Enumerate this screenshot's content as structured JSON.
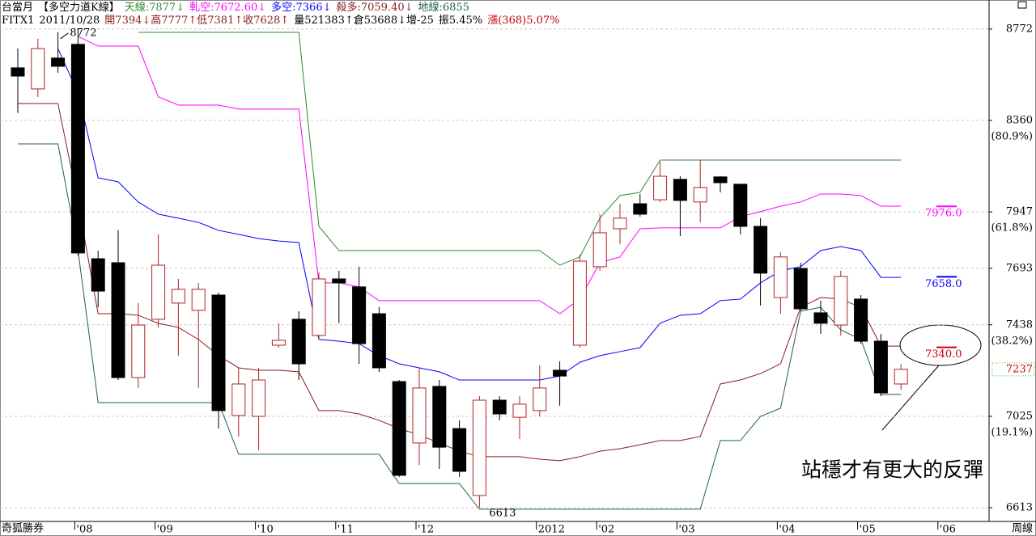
{
  "chart_data": {
    "type": "candlestick",
    "header": [
      [
        {
          "text": "台當月",
          "color": "#000000"
        },
        {
          "text": "【多空力道K線】",
          "color": "#000000"
        },
        {
          "text": "天線:7877↓",
          "color": "#2e8b2e"
        },
        {
          "text": "軋空:7672.60↓",
          "color": "#ff00ff"
        },
        {
          "text": "多空:7366↓",
          "color": "#0000ff"
        },
        {
          "text": "殺多:7059.40↓",
          "color": "#8b1a1a"
        },
        {
          "text": "地線:6855",
          "color": "#1f5f4f"
        }
      ],
      [
        {
          "text": "FITX1",
          "color": "#000000"
        },
        {
          "text": "2011/10/28",
          "color": "#000000"
        },
        {
          "text": "開7394↓高7777↑低7381↑收7628↑",
          "color": "#8b1a1a"
        },
        {
          "text": "量521383↑倉53688↓增-25",
          "color": "#000000"
        },
        {
          "text": "振5.45%",
          "color": "#000000"
        },
        {
          "text": "漲(368)5.07%",
          "color": "#c00000"
        }
      ]
    ],
    "categories": [
      null,
      null,
      null,
      "'08",
      null,
      null,
      null,
      "'09",
      null,
      null,
      null,
      null,
      "'10",
      null,
      null,
      null,
      "'11",
      null,
      null,
      null,
      "'12",
      null,
      null,
      null,
      null,
      null,
      "2012",
      null,
      null,
      "'02",
      null,
      null,
      null,
      "'03",
      null,
      null,
      null,
      null,
      "'04",
      null,
      null,
      null,
      "'05",
      null,
      null,
      null,
      "'06",
      null
    ],
    "open": [
      8597,
      8502,
      8641,
      8703,
      7736,
      7718,
      7200,
      7463,
      7536,
      7503,
      7572,
      7029,
      7025,
      7346,
      7463,
      7390,
      7645,
      7609,
      7488,
      7182,
      6905,
      7160,
      6970,
      6668,
      7098,
      7021,
      7051,
      7233,
      7346,
      7700,
      7871,
      7984,
      8002,
      8094,
      7992,
      8105,
      8072,
      7882,
      7561,
      7692,
      7492,
      7437,
      7554,
      7364,
      7171,
      null,
      null,
      null
    ],
    "high": [
      8684,
      8728,
      8757,
      8772,
      7773,
      7864,
      7536,
      7846,
      7645,
      7627,
      7583,
      7244,
      7244,
      7445,
      7499,
      7674,
      7682,
      7700,
      7518,
      7189,
      7244,
      7189,
      7007,
      7116,
      7116,
      7116,
      7255,
      7273,
      7754,
      7937,
      7984,
      8028,
      8174,
      8108,
      8181,
      8108,
      8072,
      7919,
      7765,
      7718,
      7547,
      7682,
      7572,
      7397,
      7262,
      null,
      null,
      null
    ],
    "low": [
      8393,
      8466,
      8575,
      7750,
      7517,
      7189,
      7153,
      7426,
      7299,
      7153,
      6970,
      6934,
      6872,
      7335,
      7189,
      7371,
      7445,
      7262,
      7225,
      6752,
      6806,
      6788,
      6752,
      6613,
      7007,
      6923,
      7025,
      7073,
      7335,
      7682,
      7802,
      7926,
      7992,
      7838,
      7900,
      8035,
      7846,
      7525,
      7488,
      7499,
      7397,
      7390,
      7353,
      7116,
      7145,
      null,
      null,
      null
    ],
    "close": [
      8560,
      8684,
      8604,
      7762,
      7590,
      7200,
      7437,
      7707,
      7598,
      7598,
      7051,
      7171,
      7189,
      7368,
      7262,
      7645,
      7627,
      7353,
      7244,
      6759,
      7153,
      6886,
      6777,
      7098,
      7036,
      7080,
      7153,
      7207,
      7725,
      7853,
      7919,
      7937,
      8108,
      7999,
      8057,
      8079,
      7882,
      7671,
      7744,
      7510,
      7445,
      7656,
      7364,
      7131,
      7237,
      null,
      null,
      null
    ],
    "up_color": "#b22222",
    "down_color": "#000000",
    "series": [
      {
        "color": "#2e8b2e",
        "values": [
          null,
          null,
          null,
          null,
          null,
          null,
          8757,
          8757,
          8757,
          8757,
          8757,
          8757,
          8757,
          8757,
          8757,
          7882,
          7773,
          7773,
          7773,
          7773,
          7773,
          7773,
          7773,
          7773,
          7773,
          7773,
          7773,
          7707,
          7744,
          7919,
          8021,
          8035,
          8181,
          8181,
          8181,
          8181,
          8181,
          8181,
          8181,
          8181,
          8181,
          8181,
          8181,
          8181,
          8181,
          null,
          null,
          null
        ]
      },
      {
        "color": "#ff00ff",
        "values": [
          null,
          null,
          null,
          8739,
          8695,
          8695,
          8695,
          8466,
          8429,
          8429,
          8429,
          8411,
          8411,
          8411,
          8411,
          7627,
          7627,
          7609,
          7547,
          7547,
          7547,
          7547,
          7547,
          7547,
          7547,
          7547,
          7547,
          7488,
          7554,
          7718,
          7744,
          7871,
          7875,
          7875,
          7875,
          7875,
          7926,
          7948,
          7973,
          7992,
          8028,
          8028,
          8021,
          7973,
          7973,
          null,
          null,
          null
        ]
      },
      {
        "color": "#0000ff",
        "values": [
          null,
          null,
          8684,
          8484,
          8101,
          8083,
          7992,
          7937,
          7919,
          7900,
          7864,
          7846,
          7827,
          7816,
          7809,
          7372,
          7364,
          7353,
          7299,
          7262,
          7244,
          7226,
          7189,
          7189,
          7189,
          7189,
          7189,
          7207,
          7269,
          7299,
          7317,
          7335,
          7445,
          7481,
          7488,
          7547,
          7554,
          7627,
          7682,
          7700,
          7773,
          7791,
          7773,
          7652,
          7652,
          null,
          null,
          null
        ]
      },
      {
        "color": "#8b1a1a",
        "values": [
          8436,
          8436,
          8436,
          7992,
          7488,
          7488,
          7481,
          7445,
          7426,
          7372,
          7299,
          7244,
          7233,
          7233,
          7226,
          7051,
          7051,
          7036,
          7007,
          6970,
          6941,
          6905,
          6868,
          6843,
          6843,
          6843,
          6832,
          6825,
          6843,
          6868,
          6879,
          6897,
          6916,
          6916,
          6934,
          7171,
          7189,
          7218,
          7262,
          7517,
          7561,
          7554,
          7517,
          7342,
          7342,
          null,
          null,
          null
        ]
      },
      {
        "color": "#1f5f4f",
        "values": [
          8254,
          8254,
          8254,
          7773,
          7087,
          7087,
          7087,
          7087,
          7087,
          7087,
          7087,
          6854,
          6854,
          6854,
          6854,
          6854,
          6854,
          6854,
          6854,
          6722,
          6722,
          6722,
          6722,
          6606,
          6606,
          6606,
          6606,
          6606,
          6606,
          6606,
          6606,
          6606,
          6606,
          6606,
          6606,
          6916,
          6916,
          7025,
          7062,
          7499,
          7517,
          7415,
          7372,
          7124,
          7124,
          null,
          null,
          null
        ]
      }
    ],
    "ylim": [
      6551,
      8903
    ],
    "yticks": [
      8772,
      8360,
      7947,
      7693,
      7438,
      7025,
      6613
    ],
    "fib_levels": [
      {
        "value": 8360,
        "label": "(80.9%)"
      },
      {
        "value": 7947,
        "label": "(61.8%)"
      },
      {
        "value": 7438,
        "label": "(38.2%)"
      },
      {
        "value": 7025,
        "label": "(19.1%)"
      }
    ],
    "last_price": 7237,
    "high_label": 8772,
    "low_label": 6613,
    "end_labels": [
      {
        "value": 7976,
        "label": "7976.0",
        "color": "#ff00ff"
      },
      {
        "value": 7658,
        "label": "7658.0",
        "color": "#0000ff"
      },
      {
        "value": 7340,
        "label": "7340.0",
        "color": "#d00000"
      }
    ],
    "annotation": "站穩才有更大的反彈",
    "source": "奇狐勝券",
    "period": "周線",
    "grid": true
  }
}
